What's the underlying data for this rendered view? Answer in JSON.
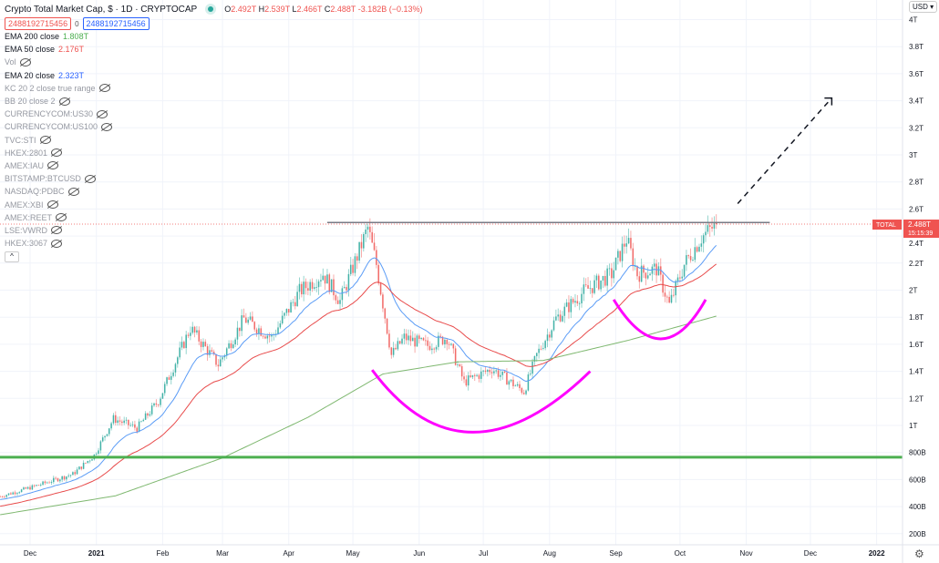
{
  "header": {
    "title": "Crypto Total Market Cap, $ · 1D · CRYPTOCAP",
    "ohlc": {
      "o_label": "O",
      "o": "2.492T",
      "h_label": "H",
      "h": "2.539T",
      "l_label": "L",
      "l": "2.466T",
      "c_label": "C",
      "c": "2.488T",
      "change": "-3.182B (−0.13%)"
    },
    "input_a": "2488192715456",
    "input_sep": "0",
    "input_b": "2488192715456"
  },
  "indicators": [
    {
      "name": "EMA 200 close",
      "value": "1.808T",
      "color": "#4caf50",
      "hidden": false
    },
    {
      "name": "EMA 50 close",
      "value": "2.176T",
      "color": "#ef5350",
      "hidden": false
    },
    {
      "name": "Vol",
      "value": null,
      "hidden": true
    },
    {
      "name": "EMA 20 close",
      "value": "2.323T",
      "color": "#2962ff",
      "hidden": false
    },
    {
      "name": "KC 20 2 close true range",
      "hidden": true
    },
    {
      "name": "BB 20 close 2",
      "hidden": true
    },
    {
      "name": "CURRENCYCOM:US30",
      "hidden": true
    },
    {
      "name": "CURRENCYCOM:US100",
      "hidden": true
    },
    {
      "name": "TVC:STI",
      "hidden": true
    },
    {
      "name": "HKEX:2801",
      "hidden": true
    },
    {
      "name": "AMEX:IAU",
      "hidden": true
    },
    {
      "name": "BITSTAMP:BTCUSD",
      "hidden": true
    },
    {
      "name": "NASDAQ:PDBC",
      "hidden": true
    },
    {
      "name": "AMEX:XBI",
      "hidden": true
    },
    {
      "name": "AMEX:REET",
      "hidden": true
    },
    {
      "name": "LSE:VWRD",
      "hidden": true
    },
    {
      "name": "HKEX:3067",
      "hidden": true
    }
  ],
  "collapse_icon": "^",
  "currency": "USD",
  "price_tag": {
    "symbol": "TOTAL",
    "price": "2.488T",
    "countdown": "15:15:39"
  },
  "colors": {
    "up": "#26a69a",
    "down": "#ef5350",
    "ema20": "#5b9cf6",
    "ema50": "#e84b4b",
    "ema200": "#7fb870",
    "support": "#4caf50",
    "cup": "#ff00ff",
    "resistance": "#787b86"
  },
  "chart_data": {
    "type": "candlestick",
    "title": "Crypto Total Market Cap",
    "x_unit": "days since 2020-12-01",
    "x_ticks": [
      {
        "day": 0,
        "label": "Dec"
      },
      {
        "day": 31,
        "label": "2021"
      },
      {
        "day": 62,
        "label": "Feb"
      },
      {
        "day": 90,
        "label": "Mar"
      },
      {
        "day": 121,
        "label": "Apr"
      },
      {
        "day": 151,
        "label": "May"
      },
      {
        "day": 182,
        "label": "Jun"
      },
      {
        "day": 212,
        "label": "Jul"
      },
      {
        "day": 243,
        "label": "Aug"
      },
      {
        "day": 274,
        "label": "Sep"
      },
      {
        "day": 304,
        "label": "Oct"
      },
      {
        "day": 335,
        "label": "Nov"
      },
      {
        "day": 365,
        "label": "Dec"
      },
      {
        "day": 396,
        "label": "2022"
      }
    ],
    "y_unit": "trillion USD",
    "y_ticks": [
      {
        "v": 0.2,
        "label": "200B"
      },
      {
        "v": 0.4,
        "label": "400B"
      },
      {
        "v": 0.6,
        "label": "600B"
      },
      {
        "v": 0.8,
        "label": "800B"
      },
      {
        "v": 1.0,
        "label": "1T"
      },
      {
        "v": 1.2,
        "label": "1.2T"
      },
      {
        "v": 1.4,
        "label": "1.4T"
      },
      {
        "v": 1.6,
        "label": "1.6T"
      },
      {
        "v": 1.8,
        "label": "1.8T"
      },
      {
        "v": 2.0,
        "label": "2T"
      },
      {
        "v": 2.2,
        "label": "2.2T"
      },
      {
        "v": 2.4,
        "label": "2.4T"
      },
      {
        "v": 2.6,
        "label": "2.6T"
      },
      {
        "v": 2.8,
        "label": "2.8T"
      },
      {
        "v": 3.0,
        "label": "3T"
      },
      {
        "v": 3.2,
        "label": "3.2T"
      },
      {
        "v": 3.4,
        "label": "3.4T"
      },
      {
        "v": 3.6,
        "label": "3.6T"
      },
      {
        "v": 3.8,
        "label": "3.8T"
      },
      {
        "v": 4.0,
        "label": "4T"
      }
    ],
    "close_path": [
      [
        -14,
        0.475
      ],
      [
        0,
        0.54
      ],
      [
        20,
        0.64
      ],
      [
        30,
        0.78
      ],
      [
        39,
        1.05
      ],
      [
        50,
        0.98
      ],
      [
        60,
        1.18
      ],
      [
        75,
        1.72
      ],
      [
        88,
        1.45
      ],
      [
        100,
        1.79
      ],
      [
        113,
        1.65
      ],
      [
        126,
        1.99
      ],
      [
        137,
        2.12
      ],
      [
        145,
        1.92
      ],
      [
        158,
        2.46
      ],
      [
        162,
        2.19
      ],
      [
        169,
        1.52
      ],
      [
        175,
        1.65
      ],
      [
        186,
        1.59
      ],
      [
        195,
        1.65
      ],
      [
        203,
        1.32
      ],
      [
        216,
        1.42
      ],
      [
        231,
        1.25
      ],
      [
        237,
        1.52
      ],
      [
        246,
        1.79
      ],
      [
        259,
        1.99
      ],
      [
        272,
        2.12
      ],
      [
        279,
        2.38
      ],
      [
        284,
        2.12
      ],
      [
        293,
        2.16
      ],
      [
        299,
        1.89
      ],
      [
        306,
        2.19
      ],
      [
        314,
        2.39
      ],
      [
        321,
        2.488
      ]
    ],
    "ema200_path": [
      [
        -14,
        0.34
      ],
      [
        40,
        0.48
      ],
      [
        90,
        0.76
      ],
      [
        130,
        1.06
      ],
      [
        165,
        1.38
      ],
      [
        200,
        1.47
      ],
      [
        240,
        1.48
      ],
      [
        280,
        1.63
      ],
      [
        321,
        1.808
      ]
    ],
    "last_close": 2.488,
    "annotations": {
      "resistance_level": 2.5,
      "resistance_days": [
        139,
        346
      ],
      "support_level": 0.765,
      "cup_large": {
        "days": [
          160,
          207,
          262
        ],
        "values": [
          1.41,
          0.95,
          1.4
        ]
      },
      "cup_small": {
        "days": [
          273,
          295,
          316
        ],
        "values": [
          1.93,
          1.64,
          1.93
        ]
      },
      "target_arrow": {
        "from": [
          331,
          2.64
        ],
        "to": [
          375,
          3.42
        ]
      }
    }
  }
}
